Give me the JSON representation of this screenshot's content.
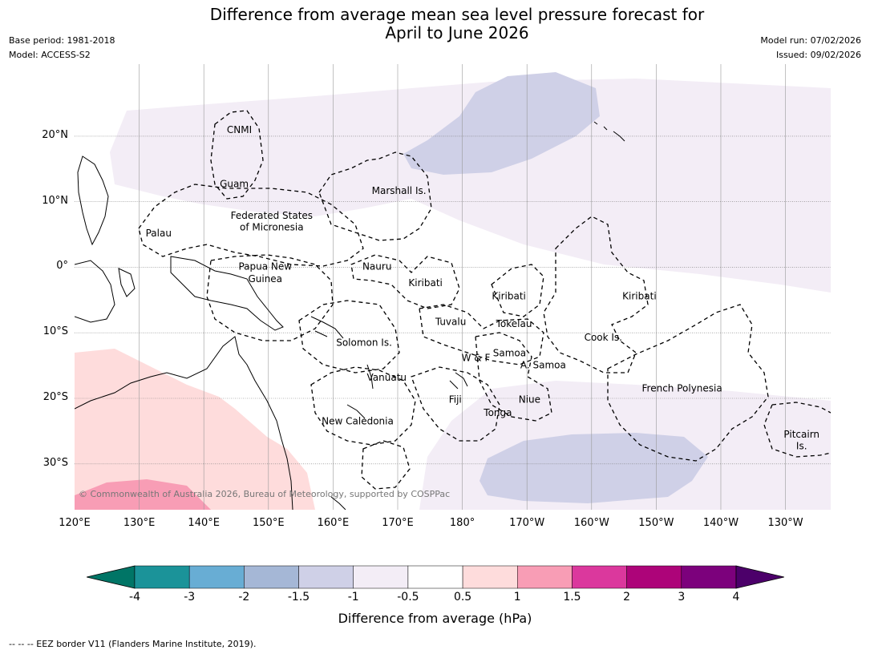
{
  "title_line1": "Difference from average mean sea level pressure forecast for",
  "title_line2": "April to June 2026",
  "meta_left": {
    "base_period": "Base period: 1981-2018",
    "model": "Model: ACCESS-S2"
  },
  "meta_right": {
    "model_run": "Model run: 07/02/2026",
    "issued": "Issued: 09/02/2026"
  },
  "map": {
    "lon_range": [
      120,
      237
    ],
    "lat_range": [
      -37,
      31
    ],
    "copyright": "© Commonwealth of Australia 2026, Bureau of Meteorology, supported by COSPPac",
    "y_ticks": [
      {
        "lat": 20,
        "label": "20°N"
      },
      {
        "lat": 10,
        "label": "10°N"
      },
      {
        "lat": 0,
        "label": "0°"
      },
      {
        "lat": -10,
        "label": "10°S"
      },
      {
        "lat": -20,
        "label": "20°S"
      },
      {
        "lat": -30,
        "label": "30°S"
      }
    ],
    "x_ticks": [
      {
        "lon": 120,
        "label": "120°E"
      },
      {
        "lon": 130,
        "label": "130°E"
      },
      {
        "lon": 140,
        "label": "140°E"
      },
      {
        "lon": 150,
        "label": "150°E"
      },
      {
        "lon": 160,
        "label": "160°E"
      },
      {
        "lon": 170,
        "label": "170°E"
      },
      {
        "lon": 180,
        "label": "180°"
      },
      {
        "lon": 190,
        "label": "170°W"
      },
      {
        "lon": 200,
        "label": "160°W"
      },
      {
        "lon": 210,
        "label": "150°W"
      },
      {
        "lon": 220,
        "label": "140°W"
      },
      {
        "lon": 230,
        "label": "130°W"
      }
    ],
    "regions": [
      {
        "name": "CNMI",
        "lon": 145.5,
        "lat": 21
      },
      {
        "name": "Guam",
        "lon": 144.7,
        "lat": 12.7
      },
      {
        "name": "Marshall Is.",
        "lon": 170.2,
        "lat": 11.7
      },
      {
        "name": "Federated States",
        "lon": 150.5,
        "lat": 7.9
      },
      {
        "name": "of Micronesia",
        "lon": 150.5,
        "lat": 6.1
      },
      {
        "name": "Palau",
        "lon": 133,
        "lat": 5.2
      },
      {
        "name": "Papua New",
        "lon": 149.5,
        "lat": 0.1
      },
      {
        "name": "Guinea",
        "lon": 149.5,
        "lat": -1.8
      },
      {
        "name": "Nauru",
        "lon": 166.8,
        "lat": 0.1
      },
      {
        "name": "Kiribati",
        "lon": 174.3,
        "lat": -2.4
      },
      {
        "name": "Kiribati",
        "lon": 187.2,
        "lat": -4.4
      },
      {
        "name": "Kiribati",
        "lon": 207.4,
        "lat": -4.4
      },
      {
        "name": "Tuvalu",
        "lon": 178.2,
        "lat": -8.3
      },
      {
        "name": "Tokelau",
        "lon": 188,
        "lat": -8.6
      },
      {
        "name": "Cook Is.",
        "lon": 201.8,
        "lat": -10.7
      },
      {
        "name": "Solomon Is.",
        "lon": 164.8,
        "lat": -11.5
      },
      {
        "name": "W & F",
        "lon": 182.1,
        "lat": -13.8
      },
      {
        "name": "Samoa",
        "lon": 187.3,
        "lat": -13.1
      },
      {
        "name": "A. Samoa",
        "lon": 192.5,
        "lat": -14.9
      },
      {
        "name": "Vanuatu",
        "lon": 168.3,
        "lat": -16.8
      },
      {
        "name": "Fiji",
        "lon": 178.9,
        "lat": -20.2
      },
      {
        "name": "Niue",
        "lon": 190.4,
        "lat": -20.2
      },
      {
        "name": "Tonga",
        "lon": 185.5,
        "lat": -22.2
      },
      {
        "name": "French Polynesia",
        "lon": 214,
        "lat": -18.5
      },
      {
        "name": "New Caledonia",
        "lon": 163.8,
        "lat": -23.5
      },
      {
        "name": "Pitcairn",
        "lon": 232.5,
        "lat": -25.5
      },
      {
        "name": "Is.",
        "lon": 232.5,
        "lat": -27.3
      }
    ]
  },
  "colorbar": {
    "colors": [
      "#007566",
      "#1b9399",
      "#68add4",
      "#a5b7d6",
      "#cfd0e7",
      "#f3edf6",
      "#ffffff",
      "#fedcdc",
      "#f89db5",
      "#db389d",
      "#ad0479",
      "#7c017c",
      "#4c006a"
    ],
    "ticks": [
      "-4",
      "-3",
      "-2",
      "-1.5",
      "-1",
      "-0.5",
      "0.5",
      "1",
      "1.5",
      "2",
      "3",
      "4"
    ],
    "label": "Difference from average (hPa)"
  },
  "footnote": "--  --  -- EEZ border V11 (Flanders Marine Institute, 2019)."
}
